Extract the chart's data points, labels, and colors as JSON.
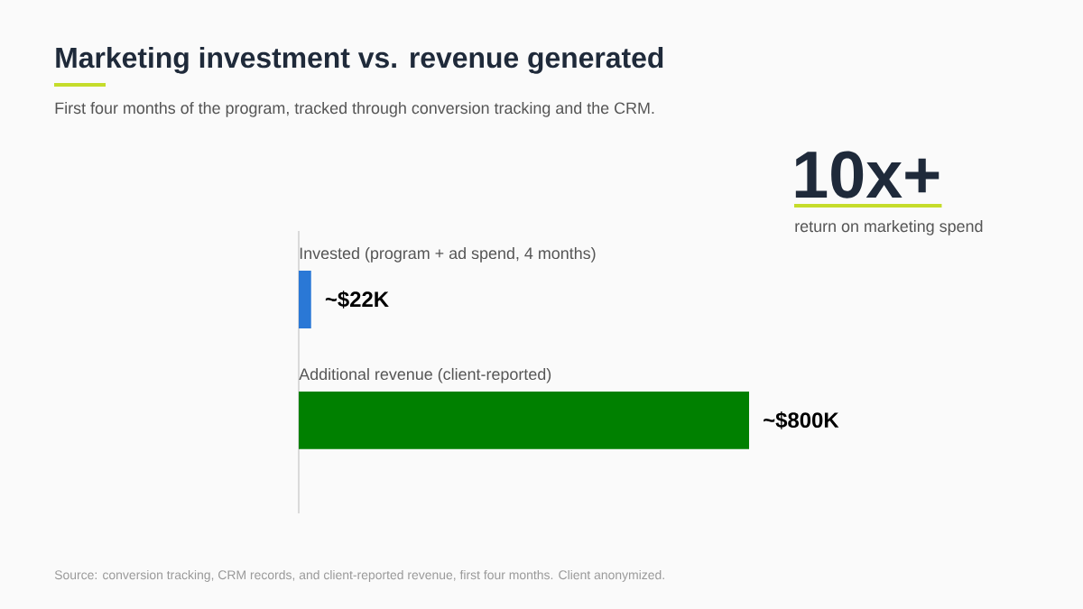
{
  "chart_data": {
    "type": "bar",
    "orientation": "horizontal",
    "title": "Marketing investment vs. revenue generated",
    "subtitle": "First four months of the program, tracked through conversion tracking and the CRM.",
    "categories": [
      "Invested (program + ad spend, 4 months)",
      "Additional revenue (client-reported)"
    ],
    "values": [
      22,
      800
    ],
    "colors": [
      "#2a78d6",
      "#008000"
    ],
    "value_labels": [
      "~$22K",
      "~$800K"
    ],
    "annotations": [
      "10x+",
      "return on marketing spend",
      "Source: conversion tracking, CRM records, and client-reported revenue, first four months. Client anonymized."
    ]
  }
}
